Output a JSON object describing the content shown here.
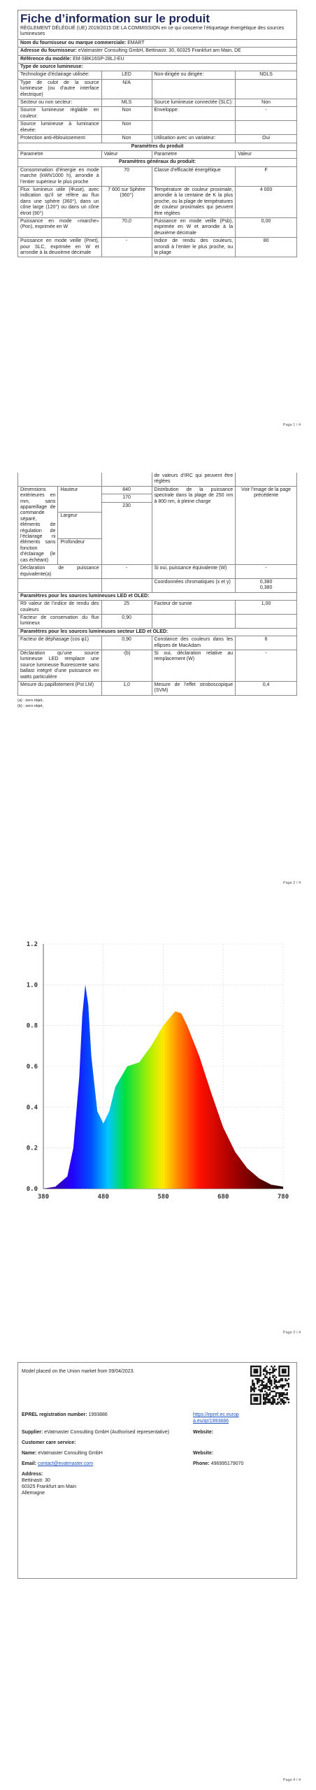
{
  "page1": {
    "title": "Fiche d’information sur le produit",
    "subtitle": "RÈGLEMENT DÉLÉGUÉ (UE) 2019/2015 DE LA COMMISSION en ce qui concerne l’étiquetage énergétique des sources lumineuses",
    "supplier_name": {
      "label": "Nom du fournisseur ou marque commerciale:",
      "value": "EMART"
    },
    "supplier_address": {
      "label": "Adresse du fournisseur:",
      "value": "eVatmaster Consulting GmbH, Bettinastr. 30, 60325 Frankfurt am Main, DE"
    },
    "model": {
      "label": "Référence du modèle:",
      "value": "EM-SBK16SP-28LJ-EU"
    },
    "type_heading": "Type de source lumineuse:",
    "type_rows": [
      [
        "Technologie d’éclairage utilisée:",
        "LED",
        "Non-dirigée ou dirigée:",
        "NDLS"
      ],
      [
        "Type de culot de la source lumineuse (ou d’autre interface électrique)",
        "N/A"
      ],
      [
        "Secteur ou non secteur:",
        "MLS",
        "Source lumineuse connectée (SLC):",
        "Non"
      ],
      [
        "Source lumineuse réglable en couleur:",
        "Non",
        "Enveloppe:",
        "-"
      ],
      [
        "Source lumineuse à luminance élevée:",
        "Non"
      ],
      [
        "Protection anti-éblouissement:",
        "Non",
        "Utilisation avec un variateur:",
        "Oui"
      ]
    ],
    "params_heading": "Paramètres du produit",
    "columns": [
      "Parametre",
      "Valeur",
      "Parametre",
      "Valeur"
    ],
    "general_heading": "Paramètres généraux du produit:",
    "general_rows": [
      [
        "Consommation d’énergie en mode marche (kWh/1000 h), arrondie à l’entier supérieur le plus proche",
        "70",
        "Classe d’efficacité énergétique",
        "F"
      ],
      [
        "Flux lumineux utile (Φuse), avec indication qu’il se réfère au flux dans une sphère (360°), dans un cône large (120°) ou dans un cône étroit (90°)",
        "7 600 sur Sphère (360°)",
        "Température de couleur proximale, arrondie à la centaine de K la plus proche, ou la plage de températures de couleur proximales qui peuvent être réglées",
        "4 000"
      ],
      [
        "Puissance en mode «marche» (Pon), exprimée en W",
        "70,0",
        "Puissance en mode veille (Psb), exprimée en W et arrondie à la deuxième décimale",
        "0,00"
      ],
      [
        "Puissance en mode veille (Pnet), pour SLC, exprimée en W et arrondie à la deuxième décimale",
        "-",
        "Indice de rendu des couleurs, arrondi à l’entier le plus proche, ou la plage",
        "80"
      ]
    ],
    "page_number": "Page 1 / 4"
  },
  "page2": {
    "continued": "de valeurs d’IRC qui peuvent être réglées",
    "dimensions": {
      "label": "Dimensions extérieures en mm, sans appareillage de commande séparé, éléments de régulation de l’éclairage ni éléments sans fonction d’éclairage (le cas échéant)",
      "items": [
        {
          "name": "Hauteur",
          "value": "840"
        },
        {
          "name": "Largeur",
          "value": "170"
        },
        {
          "name": "Profondeur",
          "value": "230"
        }
      ],
      "param": "Distribution de la puissance spectrale dans la plage de 250 nm à 800 nm, à pleine charge",
      "param_value": "Voir l’image de la page précédente"
    },
    "rows": [
      [
        "Déclaration de puissance équivalente(a)",
        "-",
        "Si oui, puissance équivalente (W)",
        "-"
      ]
    ],
    "chroma": {
      "label": "Coordonnées chromatiques (x et y)",
      "x": "0,380",
      "y": "0,380"
    },
    "led_heading": "Paramètres pour les sources lumineuses LED et OLED:",
    "led_rows": [
      [
        "R9 valeur de l’indice de rendu des couleurs",
        "25",
        "Facteur de survie",
        "1,00"
      ],
      [
        "Facteur de conservation du flux lumineux",
        "0,90"
      ]
    ],
    "mains_heading": "Paramètres pour les sources lumineuses secteur LED et OLED:",
    "mains_rows": [
      [
        "Facteur de déphasage (cos φ1)",
        "0,90",
        "Constance des couleurs dans les ellipses de MacAdam",
        "6"
      ],
      [
        "Déclaration qu’une source lumineuse LED remplace une source lumineuse fluorescente sans ballast intégré d’une puissance en watts particulière",
        "-(b)",
        "Si oui, déclaration relative au remplacement (W)",
        "-"
      ],
      [
        "Mesure du papillotement (Pst LM)",
        "1,0",
        "Mesure de l’effet stroboscopique (SVM)",
        "0,4"
      ]
    ],
    "footnotes": [
      "(a) : zero objet,",
      "(b) : zero objet,"
    ],
    "page_number": "Page 2 / 4"
  },
  "page3": {
    "spectrum": {
      "type": "area",
      "x": [
        380,
        400,
        420,
        430,
        440,
        445,
        450,
        455,
        460,
        470,
        480,
        490,
        500,
        520,
        540,
        560,
        580,
        600,
        610,
        620,
        640,
        660,
        680,
        700,
        720,
        740,
        760,
        780
      ],
      "values": [
        0,
        0.01,
        0.06,
        0.2,
        0.55,
        0.85,
        1.0,
        0.9,
        0.65,
        0.38,
        0.32,
        0.38,
        0.5,
        0.6,
        0.62,
        0.7,
        0.8,
        0.87,
        0.86,
        0.8,
        0.65,
        0.47,
        0.3,
        0.18,
        0.1,
        0.05,
        0.02,
        0.01
      ],
      "xlim": [
        380,
        780
      ],
      "ylim": [
        0,
        1.2
      ],
      "xticks": [
        380,
        480,
        580,
        680,
        780
      ],
      "yticks": [
        {
          "value": 0,
          "label": "0.0"
        },
        0.2,
        0.4,
        0.6,
        0.8,
        {
          "value": 1,
          "label": "1.0"
        },
        1.2
      ],
      "grid": true
    },
    "page_number": "Page 3 / 4"
  },
  "page4": {
    "market": "Model placed on the Union market from 09/04/2023.",
    "eprel": {
      "label": "EPREL registration number:",
      "value": "1993886",
      "link": "https://eprel.ec.europa.eu/qr/1993886"
    },
    "supplier": {
      "label": "Supplier:",
      "value": "eVatmaster Consulting GmbH (Authorised representative)",
      "website": "Website:"
    },
    "care": "Customer care service:",
    "name": {
      "label": "Name:",
      "value": "eVatmaster Consulting GmbH",
      "website": "Website:"
    },
    "email": {
      "label": "Email:",
      "value": "contact@evatmaster.com",
      "phone_label": "Phone:",
      "phone": "496995179070"
    },
    "address": {
      "label": "Address:",
      "lines": [
        "Bettinastr. 30",
        "60325 Frankfurt am Main",
        "Allemagne"
      ]
    },
    "page_number": "Page 4 / 4"
  }
}
